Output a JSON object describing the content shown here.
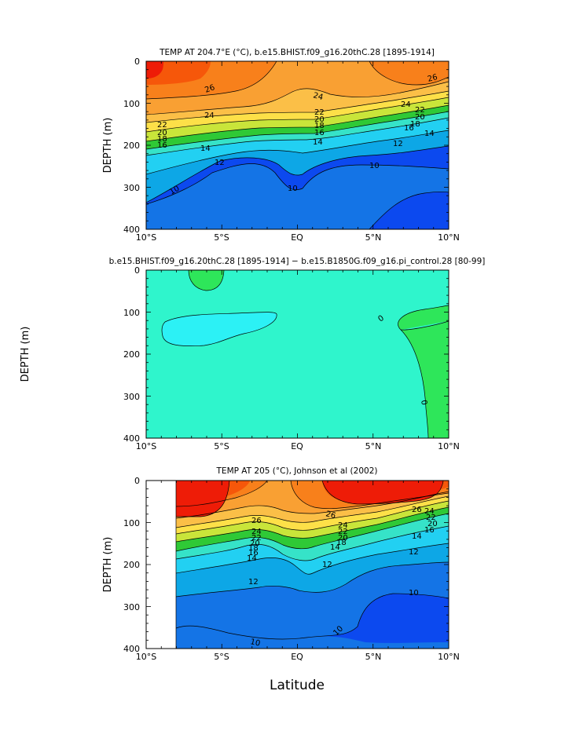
{
  "chart_data": [
    {
      "type": "contour",
      "title": "TEMP AT 204.7°E (°C), b.e15.BHIST.f09_g16.20thC.28 [1895-1914]",
      "ylabel": "DEPTH (m)",
      "xlabel": "",
      "x_ticks": [
        "10°S",
        "5°S",
        "EQ",
        "5°N",
        "10°N"
      ],
      "y_ticks": [
        "0",
        "100",
        "200",
        "300",
        "400"
      ],
      "xlim": [
        -10,
        10
      ],
      "ylim": [
        400,
        0
      ],
      "contour_labels": [
        "26",
        "26",
        "24",
        "24",
        "24",
        "22",
        "22",
        "22",
        "20",
        "20",
        "20",
        "18",
        "18",
        "18",
        "16",
        "16",
        "16",
        "14",
        "14",
        "14",
        "12",
        "12",
        "10",
        "10",
        "10"
      ]
    },
    {
      "type": "contour",
      "title": "b.e15.BHIST.f09_g16.20thC.28 [1895-1914] − b.e15.B1850G.f09_g16.pi_control.28 [80-99]",
      "ylabel": "DEPTH (m)",
      "xlabel": "",
      "x_ticks": [
        "10°S",
        "5°S",
        "EQ",
        "5°N",
        "10°N"
      ],
      "y_ticks": [
        "0",
        "100",
        "200",
        "300",
        "400"
      ],
      "xlim": [
        -10,
        10
      ],
      "ylim": [
        400,
        0
      ],
      "contour_labels": [
        "0",
        "0"
      ]
    },
    {
      "type": "contour",
      "title": "TEMP AT 205 (°C), Johnson et al (2002)",
      "ylabel": "DEPTH (m)",
      "xlabel": "Latitude",
      "x_ticks": [
        "10°S",
        "5°S",
        "EQ",
        "5°N",
        "10°N"
      ],
      "y_ticks": [
        "0",
        "100",
        "200",
        "300",
        "400"
      ],
      "xlim": [
        -10,
        10
      ],
      "ylim": [
        400,
        0
      ],
      "data_xlim": [
        -8,
        10
      ],
      "contour_labels": [
        "26",
        "26",
        "26",
        "24",
        "24",
        "24",
        "22",
        "22",
        "22",
        "20",
        "20",
        "20",
        "18",
        "18",
        "16",
        "16",
        "14",
        "14",
        "14",
        "12",
        "12",
        "12",
        "10",
        "10",
        "10"
      ]
    }
  ],
  "colors": {
    "c28": "#ee1c07",
    "c27": "#f6570a",
    "c26": "#f8801b",
    "c25": "#f9a033",
    "c23": "#fbbf47",
    "c21": "#fde048",
    "c19": "#c9e53a",
    "c17": "#2fc936",
    "c15": "#36e3c8",
    "c13": "#22d0f2",
    "c11": "#0da7e6",
    "c9": "#1474e6",
    "c7": "#0c49ef",
    "diff_bg": "#2ff5cc",
    "diff_pos": "#2ee65a",
    "diff_neg": "#2cf1f5"
  }
}
